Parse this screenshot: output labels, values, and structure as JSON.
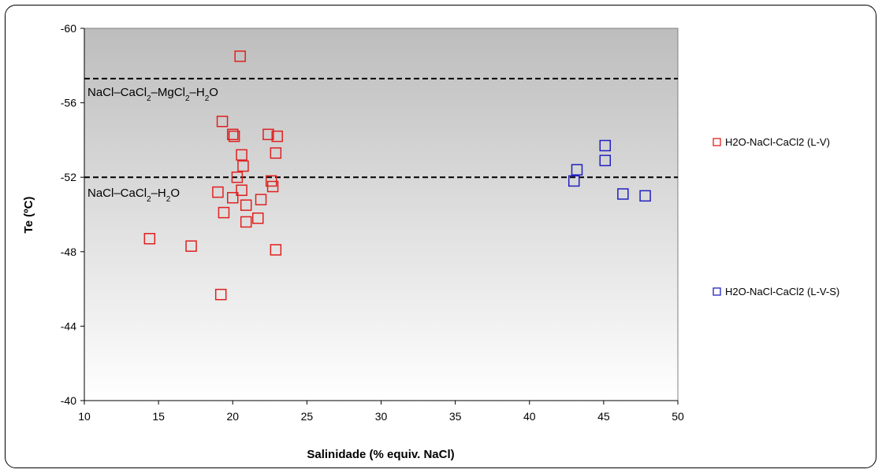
{
  "chart_data": {
    "type": "scatter",
    "xlabel": "Salinidade (% equiv. NaCl)",
    "ylabel": "Te (ºC)",
    "xlim": [
      10,
      50
    ],
    "ylim": [
      -60,
      -40
    ],
    "y_axis_reversed": true,
    "x_ticks": [
      "10",
      "15",
      "20",
      "25",
      "30",
      "35",
      "40",
      "45",
      "50"
    ],
    "y_ticks": [
      "-60",
      "-56",
      "-52",
      "-48",
      "-44",
      "-40"
    ],
    "grid": false,
    "legend_position": "right",
    "background": "gradient gray (dark top to light bottom)",
    "series": [
      {
        "name": "H2O-NaCl-CaCl2 (L-V)",
        "color": "#e02020",
        "marker": "open-square",
        "points": [
          [
            20.5,
            -58.5
          ],
          [
            19.3,
            -55.0
          ],
          [
            20.0,
            -54.3
          ],
          [
            20.1,
            -54.2
          ],
          [
            22.4,
            -54.3
          ],
          [
            23.0,
            -54.2
          ],
          [
            20.6,
            -53.2
          ],
          [
            22.9,
            -53.3
          ],
          [
            20.7,
            -52.6
          ],
          [
            20.3,
            -52.0
          ],
          [
            22.6,
            -51.8
          ],
          [
            22.7,
            -51.5
          ],
          [
            19.0,
            -51.2
          ],
          [
            20.6,
            -51.3
          ],
          [
            20.0,
            -50.9
          ],
          [
            21.9,
            -50.8
          ],
          [
            20.9,
            -50.5
          ],
          [
            19.4,
            -50.1
          ],
          [
            21.7,
            -49.8
          ],
          [
            20.9,
            -49.6
          ],
          [
            14.4,
            -48.7
          ],
          [
            17.2,
            -48.3
          ],
          [
            22.9,
            -48.1
          ],
          [
            19.2,
            -45.7
          ]
        ]
      },
      {
        "name": "H2O-NaCl-CaCl2 (L-V-S)",
        "color": "#2020c0",
        "marker": "open-square",
        "points": [
          [
            45.1,
            -53.7
          ],
          [
            45.1,
            -52.9
          ],
          [
            43.2,
            -52.4
          ],
          [
            43.0,
            -51.8
          ],
          [
            46.3,
            -51.1
          ],
          [
            47.8,
            -51.0
          ]
        ]
      }
    ],
    "reference_lines": [
      {
        "y": -57.3,
        "style": "dashed"
      },
      {
        "y": -52.0,
        "style": "dashed"
      }
    ],
    "annotations": {
      "line1": {
        "parts": [
          "NaCl–CaCl",
          "2",
          "–MgCl",
          "2",
          "–H",
          "2",
          "O"
        ]
      },
      "line2": {
        "parts": [
          "NaCl–CaCl",
          "2",
          "–H",
          "2",
          "O"
        ]
      }
    }
  }
}
